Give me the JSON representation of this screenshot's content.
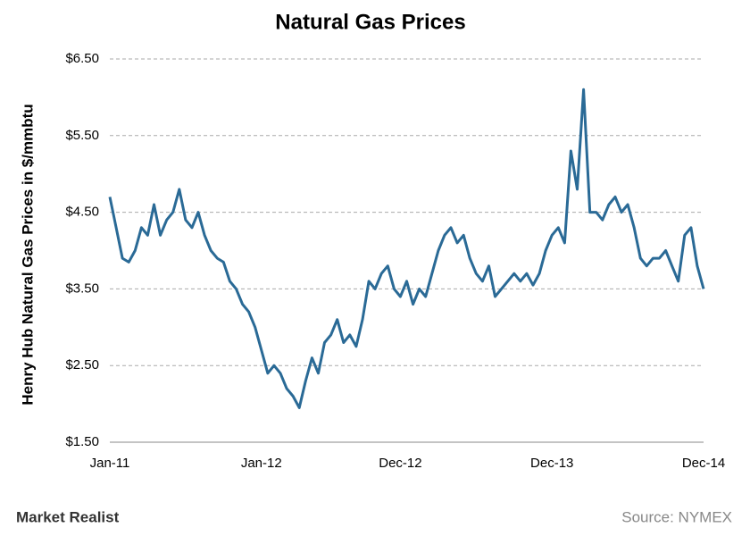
{
  "chart_data": {
    "type": "line",
    "title": "Natural Gas Prices",
    "y_axis_label": "Henry Hub Natural Gas Prices in $/mmbtu",
    "brand": "Market Realist",
    "source": "Source: NYMEX",
    "categories": [
      "Jan-11",
      null,
      null,
      null,
      null,
      null,
      null,
      null,
      null,
      null,
      null,
      null,
      null,
      null,
      null,
      null,
      null,
      null,
      null,
      null,
      null,
      null,
      null,
      null,
      "Jan-12",
      null,
      null,
      null,
      null,
      null,
      null,
      null,
      null,
      null,
      null,
      null,
      null,
      null,
      null,
      null,
      null,
      null,
      null,
      null,
      null,
      null,
      "Dec-12",
      null,
      null,
      null,
      null,
      null,
      null,
      null,
      null,
      null,
      null,
      null,
      null,
      null,
      null,
      null,
      null,
      null,
      null,
      null,
      null,
      null,
      null,
      null,
      "Dec-13",
      null,
      null,
      null,
      null,
      null,
      null,
      null,
      null,
      null,
      null,
      null,
      null,
      null,
      null,
      null,
      null,
      null,
      null,
      null,
      null,
      null,
      null,
      null,
      "Dec-14"
    ],
    "series": [
      {
        "name": "Henry Hub",
        "color": "#2a6a96",
        "values": [
          4.7,
          4.3,
          3.9,
          3.85,
          4.0,
          4.3,
          4.2,
          4.6,
          4.2,
          4.4,
          4.5,
          4.8,
          4.4,
          4.3,
          4.5,
          4.2,
          4.0,
          3.9,
          3.85,
          3.6,
          3.5,
          3.3,
          3.2,
          3.0,
          2.7,
          2.4,
          2.5,
          2.4,
          2.2,
          2.1,
          1.95,
          2.3,
          2.6,
          2.4,
          2.8,
          2.9,
          3.1,
          2.8,
          2.9,
          2.75,
          3.1,
          3.6,
          3.5,
          3.7,
          3.8,
          3.5,
          3.4,
          3.6,
          3.3,
          3.5,
          3.4,
          3.7,
          4.0,
          4.2,
          4.3,
          4.1,
          4.2,
          3.9,
          3.7,
          3.6,
          3.8,
          3.4,
          3.5,
          3.6,
          3.7,
          3.6,
          3.7,
          3.55,
          3.7,
          4.0,
          4.2,
          4.3,
          4.1,
          5.3,
          4.8,
          6.1,
          4.5,
          4.5,
          4.4,
          4.6,
          4.7,
          4.5,
          4.6,
          4.3,
          3.9,
          3.8,
          3.9,
          3.9,
          4.0,
          3.8,
          3.6,
          4.2,
          4.3,
          3.8,
          3.5
        ]
      }
    ],
    "ylim": [
      1.5,
      6.5
    ],
    "yticks": [
      {
        "value": 1.5,
        "label": "$1.50"
      },
      {
        "value": 2.5,
        "label": "$2.50"
      },
      {
        "value": 3.5,
        "label": "$3.50"
      },
      {
        "value": 4.5,
        "label": "$4.50"
      },
      {
        "value": 5.5,
        "label": "$5.50"
      },
      {
        "value": 6.5,
        "label": "$6.50"
      }
    ],
    "grid": true
  }
}
